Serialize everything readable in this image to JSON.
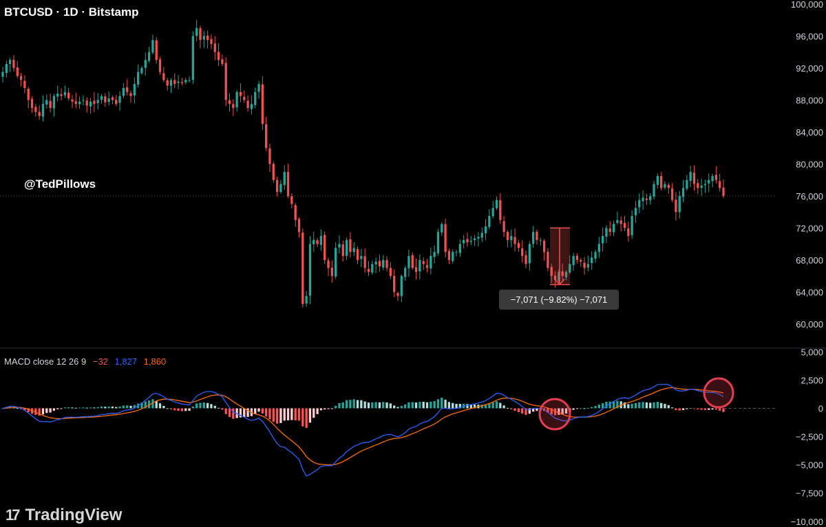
{
  "header": {
    "symbol_title": "BTCUSD · 1D · Bitstamp"
  },
  "watermark": {
    "handle": "@TedPillows"
  },
  "measure": {
    "label": "−7,071 (−9.82%) −7,071",
    "from_price": 72000,
    "to_price": 64929
  },
  "macd_legend": {
    "name": "MACD close 12 26 9",
    "hist": "−32",
    "macd": "1,827",
    "signal": "1,860"
  },
  "branding": {
    "logo": "TradingView"
  },
  "colors": {
    "up": "#26a69a",
    "down": "#ef5350",
    "macd": "#2962ff",
    "signal": "#ff6d00",
    "hist_up_strong": "#26a69a",
    "hist_up_weak": "#b2dfdb",
    "hist_down_strong": "#ff5252",
    "hist_down_weak": "#ffcdd2",
    "circle": "#e53e50"
  },
  "chart_data": [
    {
      "type": "candlestick",
      "title": "BTCUSD · 1D · Bitstamp",
      "y_ticks": [
        "100,000",
        "96,000",
        "92,000",
        "88,000",
        "84,000",
        "80,000",
        "76,000",
        "72,000",
        "68,000",
        "64,000",
        "60,000"
      ],
      "y_tick_values": [
        100000,
        96000,
        92000,
        88000,
        84000,
        80000,
        76000,
        72000,
        68000,
        64000,
        60000
      ],
      "ylim": [
        57500,
        100500
      ],
      "current_price_line": 76000,
      "closes": [
        91500,
        92500,
        93000,
        92000,
        91000,
        90500,
        89500,
        88000,
        87000,
        86500,
        86000,
        87500,
        88000,
        87000,
        88500,
        88800,
        88500,
        89000,
        88200,
        87800,
        87500,
        87800,
        88000,
        87300,
        87800,
        87500,
        88000,
        88500,
        87700,
        88200,
        88000,
        87500,
        88500,
        89500,
        89000,
        88500,
        90000,
        91500,
        92000,
        93000,
        94000,
        95500,
        93000,
        91500,
        90500,
        89800,
        90500,
        90000,
        90300,
        90100,
        90500,
        90500,
        96000,
        97000,
        95500,
        96000,
        95500,
        95000,
        94000,
        93000,
        92500,
        88000,
        87500,
        87000,
        89000,
        88500,
        88000,
        87000,
        87500,
        89000,
        90000,
        85000,
        82000,
        80000,
        78000,
        76500,
        77500,
        79000,
        76000,
        75000,
        73000,
        71500,
        62500,
        63500,
        70000,
        70500,
        70000,
        71000,
        68000,
        67000,
        66000,
        69500,
        70000,
        68500,
        70500,
        69000,
        69500,
        68000,
        68500,
        67000,
        66500,
        67500,
        67800,
        67200,
        68000,
        67000,
        66000,
        64000,
        63500,
        66000,
        67000,
        68500,
        67000,
        66500,
        68000,
        67500,
        67000,
        68500,
        69000,
        71500,
        72500,
        69000,
        68000,
        69000,
        69000,
        70000,
        70500,
        70200,
        70400,
        70700,
        70900,
        71400,
        72200,
        73500,
        74500,
        75500,
        73000,
        71500,
        70500,
        71000,
        70000,
        69500,
        68500,
        67500,
        70000,
        71500,
        70500,
        70500,
        69000,
        67000,
        66000,
        65500,
        66500,
        66000,
        66500,
        67500,
        68500,
        68000,
        67800,
        67000,
        67500,
        68300,
        69000,
        70000,
        71000,
        72000,
        71500,
        72500,
        73000,
        72500,
        72000,
        71000,
        73500,
        74500,
        75500,
        75800,
        75500,
        76000,
        77500,
        78500,
        77000,
        77500,
        77000,
        75500,
        74000,
        76000,
        77000,
        78000,
        79000,
        77500,
        77000,
        77300,
        77500,
        78000,
        78500,
        78000,
        77000,
        76000
      ],
      "macd": {
        "legend": {
          "hist": -32,
          "macd": 1827,
          "signal": 1860
        },
        "y_ticks": [
          "5,000",
          "2,500",
          "0",
          "−2,500",
          "−5,000",
          "−7,500",
          "−10,000"
        ],
        "y_tick_values": [
          5000,
          2500,
          0,
          -2500,
          -5000,
          -7500,
          -10000
        ],
        "ylim": [
          -10500,
          5200
        ]
      }
    }
  ]
}
